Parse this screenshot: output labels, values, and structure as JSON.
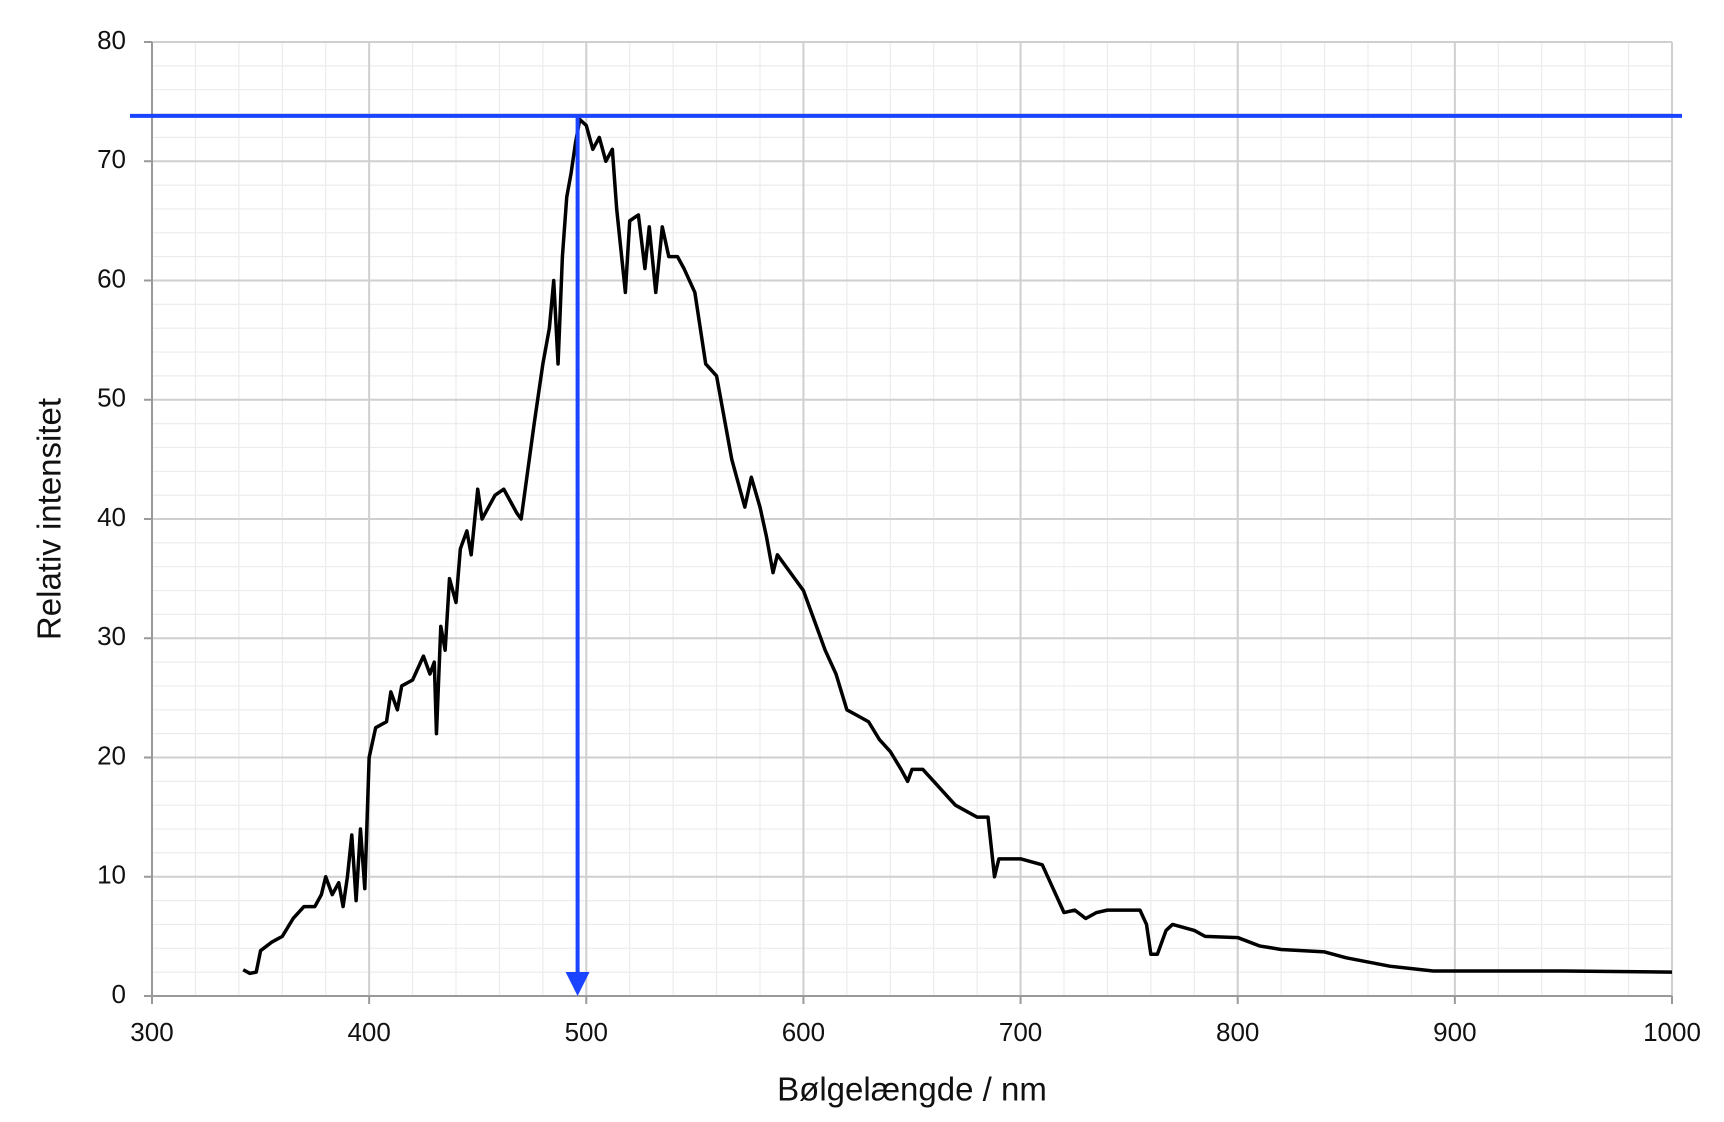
{
  "chart_data": {
    "type": "line",
    "xlabel": "Bølgelængde / nm",
    "ylabel": "Relativ intensitet",
    "xlim": [
      300,
      1000
    ],
    "xticks": [
      300,
      400,
      500,
      600,
      700,
      800,
      900,
      1000
    ],
    "ylim": [
      0,
      80
    ],
    "yticks": [
      0,
      10,
      20,
      30,
      40,
      50,
      60,
      70,
      80
    ],
    "grid": true,
    "minor_xstep": 20,
    "minor_ystep": 2,
    "series": [
      {
        "color": "#000000",
        "x": [
          342,
          345,
          348,
          350,
          355,
          360,
          365,
          370,
          375,
          378,
          380,
          383,
          386,
          388,
          390,
          392,
          394,
          396,
          398,
          400,
          403,
          408,
          410,
          413,
          415,
          420,
          425,
          428,
          430,
          431,
          433,
          435,
          437,
          440,
          442,
          445,
          447,
          450,
          452,
          455,
          458,
          462,
          465,
          468,
          470,
          473,
          476,
          480,
          483,
          485,
          487,
          489,
          491,
          493,
          495,
          497,
          500,
          503,
          506,
          509,
          512,
          514,
          518,
          520,
          524,
          527,
          529,
          532,
          535,
          538,
          542,
          545,
          550,
          555,
          560,
          563,
          567,
          570,
          573,
          576,
          580,
          583,
          586,
          588,
          592,
          596,
          600,
          605,
          610,
          615,
          620,
          625,
          630,
          635,
          640,
          645,
          648,
          650,
          655,
          660,
          665,
          670,
          675,
          680,
          685,
          688,
          690,
          700,
          710,
          715,
          720,
          725,
          730,
          735,
          740,
          755,
          758,
          760,
          763,
          767,
          770,
          780,
          785,
          800,
          810,
          820,
          840,
          850,
          870,
          890,
          950,
          1000
        ],
        "values": [
          2.2,
          1.9,
          2.0,
          3.8,
          4.5,
          5,
          6.5,
          7.5,
          7.5,
          8.5,
          10,
          8.5,
          9.5,
          7.5,
          10,
          13.5,
          8,
          14,
          9,
          20,
          22.5,
          23,
          25.5,
          24,
          26,
          26.5,
          28.5,
          27,
          28,
          22,
          31,
          29,
          35,
          33,
          37.5,
          39,
          37,
          42.5,
          40,
          41,
          42,
          42.5,
          41.5,
          40.5,
          40,
          44,
          48,
          53,
          56,
          60,
          53,
          62,
          67,
          69,
          71.5,
          73.5,
          73,
          71,
          72,
          70,
          71,
          66,
          59,
          65,
          65.5,
          61,
          64.5,
          59,
          64.5,
          62,
          62,
          61,
          59,
          53,
          52,
          49,
          45,
          43,
          41,
          43.5,
          41,
          38.5,
          35.5,
          37,
          36,
          35,
          34,
          31.5,
          29,
          27,
          24,
          23.5,
          23,
          21.5,
          20.5,
          19,
          18,
          19,
          19,
          18,
          17,
          16,
          15.5,
          15,
          15,
          10,
          11.5,
          11.5,
          11,
          9,
          7,
          7.2,
          6.5,
          7,
          7.2,
          7.2,
          6,
          3.5,
          3.5,
          5.5,
          6,
          5.5,
          5,
          4.9,
          4.2,
          3.9,
          3.7,
          3.2,
          2.5,
          2.1,
          2.1,
          2.0
        ]
      }
    ],
    "marker_line": {
      "x": 496,
      "y": 73.8,
      "color": "#1a44ff"
    }
  }
}
